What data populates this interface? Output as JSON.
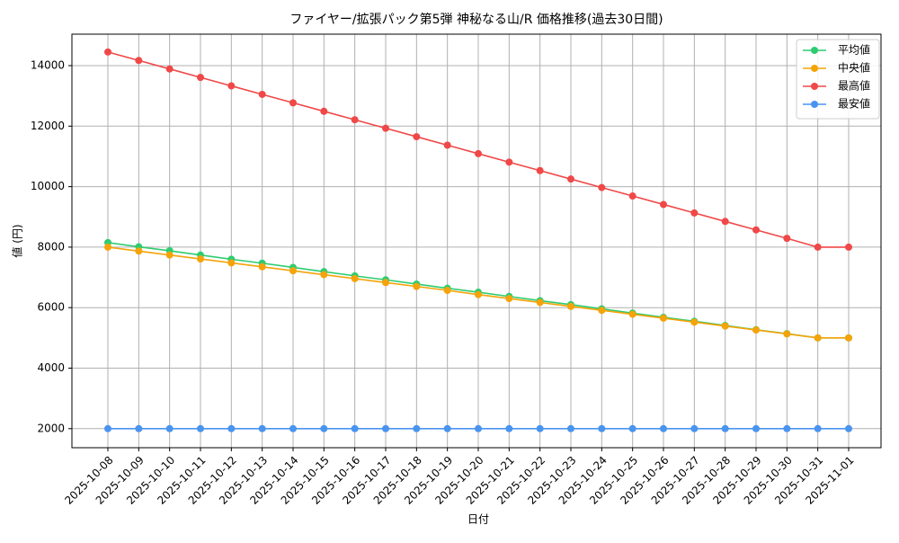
{
  "chart_data": {
    "type": "line",
    "title": "ファイヤー/拡張パック第5弾 神秘なる山/R 価格推移(過去30日間)",
    "xlabel": "日付",
    "ylabel": "値 (円)",
    "categories": [
      "2025-10-08",
      "2025-10-09",
      "2025-10-10",
      "2025-10-11",
      "2025-10-12",
      "2025-10-13",
      "2025-10-14",
      "2025-10-15",
      "2025-10-16",
      "2025-10-17",
      "2025-10-18",
      "2025-10-19",
      "2025-10-20",
      "2025-10-21",
      "2025-10-22",
      "2025-10-23",
      "2025-10-24",
      "2025-10-25",
      "2025-10-26",
      "2025-10-27",
      "2025-10-28",
      "2025-10-29",
      "2025-10-30",
      "2025-10-31",
      "2025-11-01"
    ],
    "series": [
      {
        "name": "平均値",
        "color": "#2ecc71",
        "values": [
          8150,
          8010,
          7880,
          7740,
          7600,
          7470,
          7330,
          7190,
          7050,
          6920,
          6780,
          6640,
          6510,
          6370,
          6230,
          6100,
          5960,
          5820,
          5680,
          5550,
          5410,
          5270,
          5140,
          5000,
          5000
        ]
      },
      {
        "name": "中央値",
        "color": "#f5a30a",
        "values": [
          8000,
          7870,
          7740,
          7610,
          7480,
          7350,
          7220,
          7090,
          6960,
          6830,
          6700,
          6570,
          6430,
          6300,
          6170,
          6040,
          5910,
          5780,
          5650,
          5520,
          5390,
          5260,
          5130,
          5000,
          5000
        ]
      },
      {
        "name": "最高値",
        "color": "#f04848",
        "values": [
          14450,
          14170,
          13890,
          13610,
          13330,
          13050,
          12770,
          12490,
          12210,
          11930,
          11650,
          11370,
          11090,
          10810,
          10530,
          10250,
          9970,
          9690,
          9410,
          9130,
          8850,
          8570,
          8290,
          8000,
          8000
        ]
      },
      {
        "name": "最安値",
        "color": "#4a94f0",
        "values": [
          2000,
          2000,
          2000,
          2000,
          2000,
          2000,
          2000,
          2000,
          2000,
          2000,
          2000,
          2000,
          2000,
          2000,
          2000,
          2000,
          2000,
          2000,
          2000,
          2000,
          2000,
          2000,
          2000,
          2000,
          2000
        ]
      }
    ],
    "ylim": [
      1370,
      15040
    ],
    "yticks": [
      2000,
      4000,
      6000,
      8000,
      10000,
      12000,
      14000
    ],
    "grid": true,
    "legend": "upper right"
  }
}
